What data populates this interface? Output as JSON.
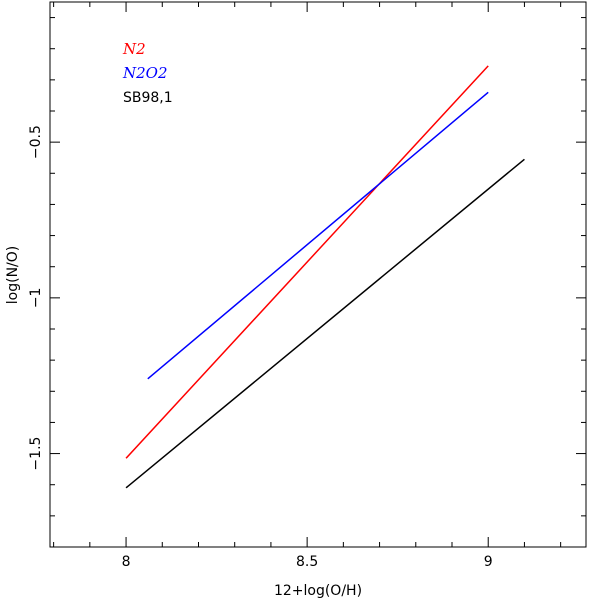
{
  "chart_data": {
    "type": "line",
    "title": "",
    "xlabel": "12+log(O/H)",
    "ylabel": "log(N/O)",
    "xlim": [
      7.79,
      9.27
    ],
    "ylim": [
      -1.8,
      -0.05
    ],
    "x_major_ticks": [
      8,
      8.5,
      9
    ],
    "x_tick_labels": [
      "8",
      "8.5",
      "9"
    ],
    "y_major_ticks": [
      -1.5,
      -1,
      -0.5
    ],
    "y_tick_labels": [
      "−1.5",
      "−1",
      "−0.5"
    ],
    "x_minor_step": 0.1,
    "y_minor_step": 0.1,
    "grid": false,
    "legend_position": "top-left",
    "series": [
      {
        "name": "N2",
        "color": "#ff0000",
        "italic": true,
        "x": [
          8.0,
          9.0
        ],
        "y": [
          -1.515,
          -0.255
        ]
      },
      {
        "name": "N2O2",
        "color": "#0000ff",
        "italic": true,
        "x": [
          8.06,
          9.0
        ],
        "y": [
          -1.26,
          -0.34
        ]
      },
      {
        "name": "SB98,1",
        "color": "#000000",
        "italic": false,
        "x": [
          8.0,
          9.1
        ],
        "y": [
          -1.61,
          -0.555
        ]
      }
    ]
  }
}
